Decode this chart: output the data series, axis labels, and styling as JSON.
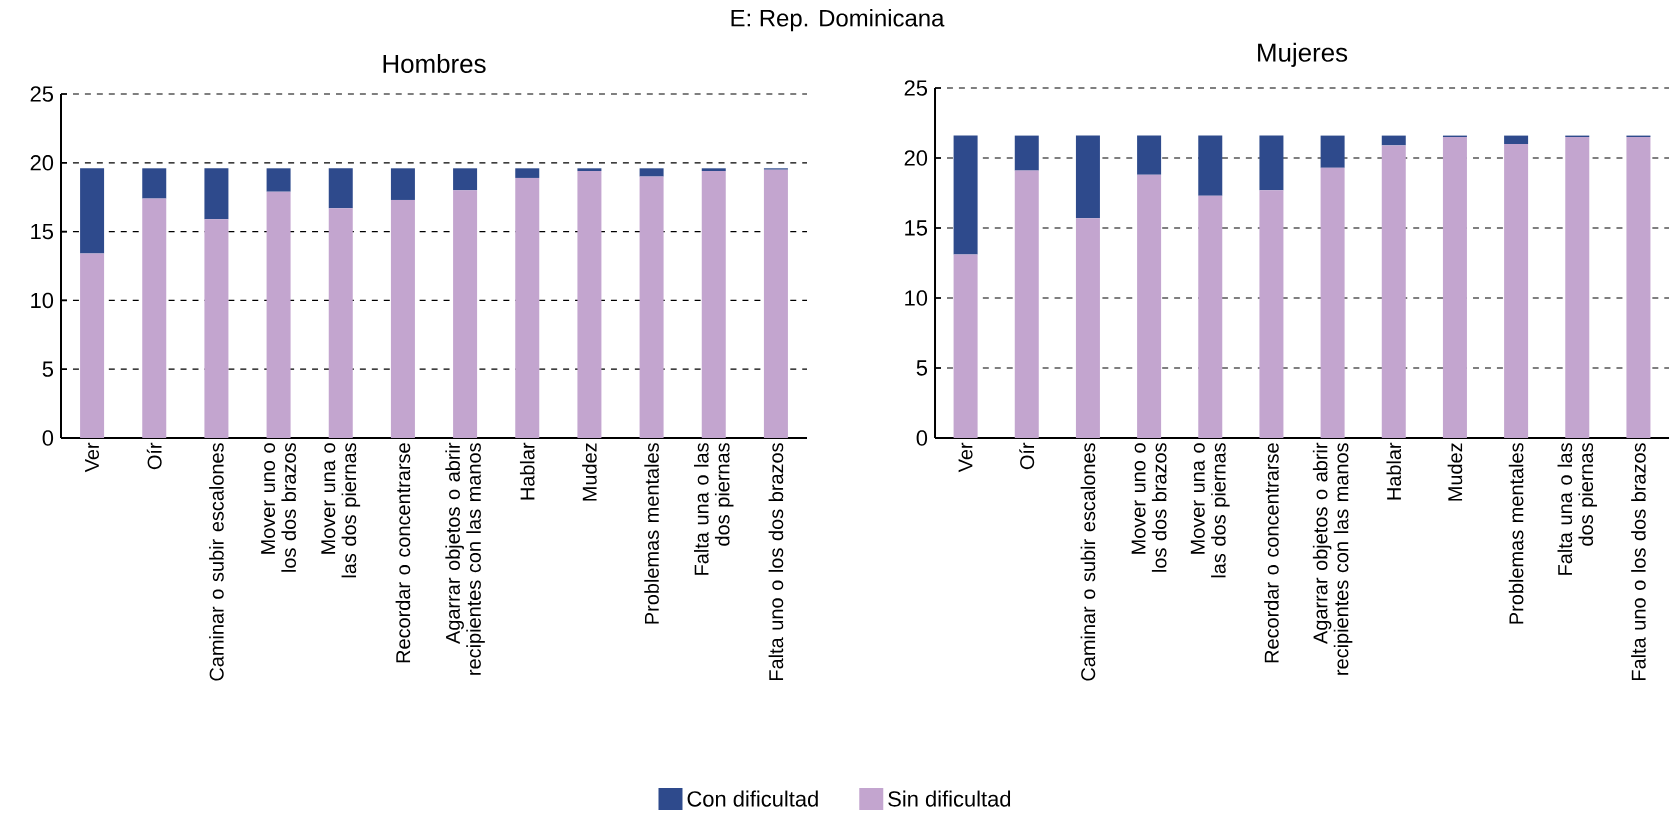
{
  "chart_data": [
    {
      "type": "bar",
      "title": "Hombres",
      "annotations": [
        "E: Rep. Dominicana"
      ],
      "stacked": true,
      "grid": "y",
      "legend": "bottom",
      "categories": [
        "Ver",
        "Oír",
        "Caminar o subir escalones",
        "Mover uno o los dos brazos",
        "Mover una o las dos piernas",
        "Recordar o concentrarse",
        "Agarrar objetos o abrir recipientes con las manos",
        "Hablar",
        "Mudez",
        "Problemas mentales",
        "Falta una o las dos piernas",
        "Falta uno o los dos brazos"
      ],
      "ylim": [
        0,
        25
      ],
      "yticks": [
        0,
        5,
        10,
        15,
        20,
        25
      ],
      "series": [
        {
          "name": "Sin dificultad",
          "color": "#c3a5cf",
          "values": [
            13.4,
            17.4,
            15.9,
            17.9,
            16.7,
            17.3,
            18.0,
            18.9,
            19.4,
            19.0,
            19.4,
            19.5
          ]
        },
        {
          "name": "Con dificultad",
          "color": "#2e4a8c",
          "values": [
            6.2,
            2.2,
            3.7,
            1.7,
            2.9,
            2.3,
            1.6,
            0.7,
            0.2,
            0.6,
            0.2,
            0.1
          ]
        }
      ]
    },
    {
      "type": "bar",
      "title": "Mujeres",
      "stacked": true,
      "grid": "y",
      "categories": [
        "Ver",
        "Oír",
        "Caminar o subir escalones",
        "Mover uno o los dos brazos",
        "Mover una o las dos piernas",
        "Recordar o concentrarse",
        "Agarrar objetos o abrir recipientes con las manos",
        "Hablar",
        "Mudez",
        "Problemas mentales",
        "Falta una o las dos piernas",
        "Falta uno o los dos brazos"
      ],
      "ylim": [
        0,
        25
      ],
      "yticks": [
        0,
        5,
        10,
        15,
        20,
        25
      ],
      "series": [
        {
          "color": "#c3a5cf",
          "values": [
            13.1,
            19.1,
            15.7,
            18.8,
            17.3,
            17.7,
            19.3,
            20.9,
            21.5,
            21.0,
            21.5,
            21.5
          ]
        },
        {
          "color": "#2e4a8c",
          "values": [
            8.5,
            2.5,
            5.9,
            2.8,
            4.3,
            3.9,
            2.3,
            0.7,
            0.1,
            0.6,
            0.1,
            0.1
          ]
        }
      ]
    }
  ]
}
